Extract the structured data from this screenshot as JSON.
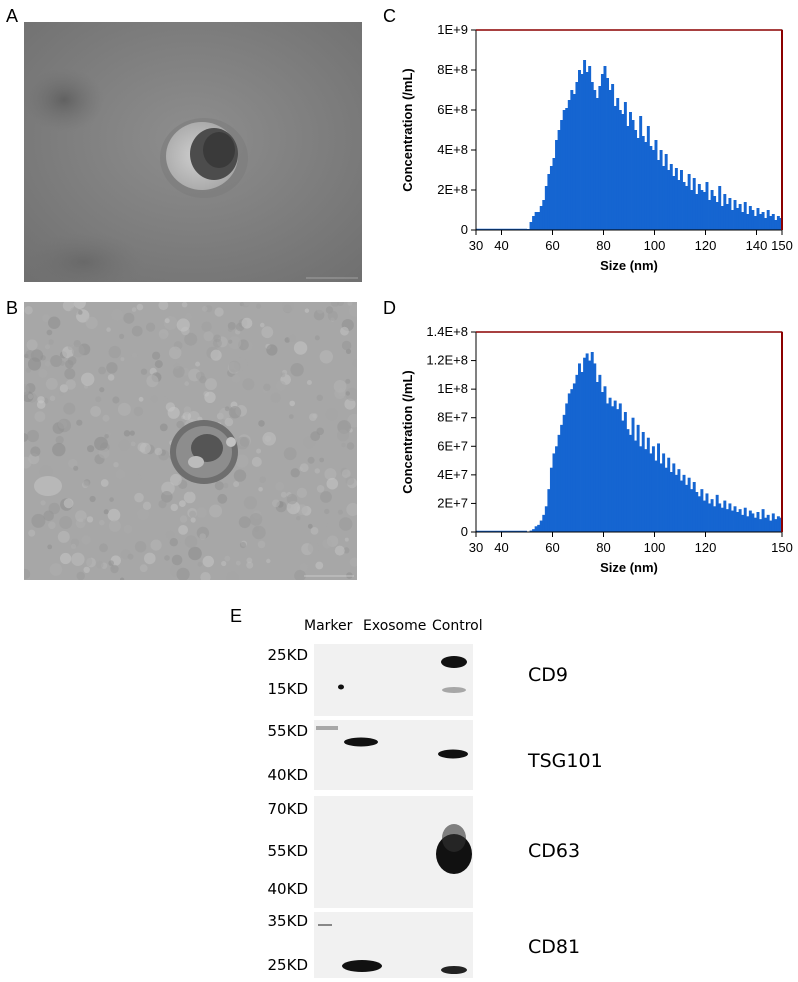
{
  "panels": {
    "A": {
      "label": "A",
      "scale_bar_text": "100nm"
    },
    "B": {
      "label": "B",
      "scale_bar_text": "100nm"
    },
    "C": {
      "label": "C"
    },
    "D": {
      "label": "D"
    },
    "E": {
      "label": "E"
    }
  },
  "chart_data": [
    {
      "id": "C",
      "type": "bar",
      "xlabel": "Size (nm)",
      "ylabel": "Concentration (/mL)",
      "xlim": [
        30,
        150
      ],
      "ylim": [
        0,
        1000000000
      ],
      "xticks": [
        {
          "v": 30,
          "label": "30"
        },
        {
          "v": 40,
          "label": "40"
        },
        {
          "v": 60,
          "label": "60"
        },
        {
          "v": 80,
          "label": "80"
        },
        {
          "v": 100,
          "label": "100"
        },
        {
          "v": 120,
          "label": "120"
        },
        {
          "v": 140,
          "label": "140"
        },
        {
          "v": 150,
          "label": "150"
        }
      ],
      "yticks": [
        {
          "v": 0,
          "label": "0"
        },
        {
          "v": 200000000,
          "label": "2E+8"
        },
        {
          "v": 400000000,
          "label": "4E+8"
        },
        {
          "v": 600000000,
          "label": "6E+8"
        },
        {
          "v": 800000000,
          "label": "8E+8"
        },
        {
          "v": 1000000000,
          "label": "1E+9"
        }
      ],
      "color": "#1565d1",
      "bin_start": 50,
      "bin_width": 1,
      "values": [
        0.005,
        0.04,
        0.07,
        0.09,
        0.09,
        0.12,
        0.15,
        0.22,
        0.28,
        0.32,
        0.36,
        0.45,
        0.5,
        0.55,
        0.6,
        0.61,
        0.65,
        0.7,
        0.68,
        0.74,
        0.8,
        0.78,
        0.85,
        0.79,
        0.82,
        0.74,
        0.7,
        0.66,
        0.72,
        0.78,
        0.82,
        0.76,
        0.7,
        0.73,
        0.62,
        0.66,
        0.6,
        0.58,
        0.64,
        0.52,
        0.59,
        0.55,
        0.5,
        0.46,
        0.57,
        0.47,
        0.44,
        0.52,
        0.42,
        0.4,
        0.45,
        0.35,
        0.4,
        0.32,
        0.38,
        0.3,
        0.33,
        0.27,
        0.31,
        0.25,
        0.3,
        0.24,
        0.22,
        0.28,
        0.2,
        0.26,
        0.18,
        0.23,
        0.2,
        0.19,
        0.24,
        0.15,
        0.2,
        0.17,
        0.14,
        0.22,
        0.12,
        0.18,
        0.13,
        0.16,
        0.1,
        0.15,
        0.11,
        0.13,
        0.09,
        0.14,
        0.08,
        0.12,
        0.1,
        0.07,
        0.11,
        0.08,
        0.09,
        0.06,
        0.1,
        0.07,
        0.08,
        0.05,
        0.07,
        0.06
      ]
    },
    {
      "id": "D",
      "type": "bar",
      "xlabel": "Size (nm)",
      "ylabel": "Concentration (/mL)",
      "xlim": [
        30,
        150
      ],
      "ylim": [
        0,
        140000000
      ],
      "xticks": [
        {
          "v": 30,
          "label": "30"
        },
        {
          "v": 40,
          "label": "40"
        },
        {
          "v": 60,
          "label": "60"
        },
        {
          "v": 80,
          "label": "80"
        },
        {
          "v": 100,
          "label": "100"
        },
        {
          "v": 120,
          "label": "120"
        },
        {
          "v": 150,
          "label": "150"
        }
      ],
      "yticks": [
        {
          "v": 0,
          "label": "0"
        },
        {
          "v": 20000000,
          "label": "2E+7"
        },
        {
          "v": 40000000,
          "label": "4E+7"
        },
        {
          "v": 60000000,
          "label": "6E+7"
        },
        {
          "v": 80000000,
          "label": "8E+7"
        },
        {
          "v": 100000000,
          "label": "1E+8"
        },
        {
          "v": 120000000,
          "label": "1.2E+8"
        },
        {
          "v": 140000000,
          "label": "1.4E+8"
        }
      ],
      "color": "#1565d1",
      "bin_start": 50,
      "bin_width": 1,
      "values": [
        0.003,
        0.01,
        0.02,
        0.04,
        0.05,
        0.08,
        0.12,
        0.18,
        0.3,
        0.45,
        0.55,
        0.6,
        0.68,
        0.75,
        0.82,
        0.9,
        0.97,
        1.0,
        1.04,
        1.1,
        1.18,
        1.12,
        1.22,
        1.25,
        1.2,
        1.26,
        1.18,
        1.05,
        1.1,
        0.98,
        1.02,
        0.9,
        0.94,
        0.88,
        0.92,
        0.86,
        0.9,
        0.78,
        0.84,
        0.72,
        0.68,
        0.8,
        0.64,
        0.75,
        0.6,
        0.7,
        0.58,
        0.66,
        0.55,
        0.6,
        0.5,
        0.62,
        0.48,
        0.55,
        0.45,
        0.52,
        0.42,
        0.48,
        0.4,
        0.44,
        0.36,
        0.4,
        0.33,
        0.38,
        0.3,
        0.35,
        0.28,
        0.25,
        0.3,
        0.22,
        0.27,
        0.2,
        0.23,
        0.18,
        0.26,
        0.2,
        0.17,
        0.22,
        0.16,
        0.2,
        0.15,
        0.18,
        0.14,
        0.16,
        0.12,
        0.17,
        0.11,
        0.15,
        0.13,
        0.1,
        0.14,
        0.09,
        0.16,
        0.1,
        0.12,
        0.08,
        0.13,
        0.09,
        0.11,
        0.1
      ],
      "value_scale": 100000000
    }
  ],
  "western_blot": {
    "lane_headers": [
      "Marker",
      "Exosome",
      "Control"
    ],
    "rows": [
      {
        "protein": "CD9",
        "mw_top": "25KD",
        "mw_bottom": "15KD"
      },
      {
        "protein": "TSG101",
        "mw_top": "55KD",
        "mw_bottom": "40KD"
      },
      {
        "protein": "CD63",
        "mw_top": "70KD",
        "mw_mid": "55KD",
        "mw_bottom": "40KD"
      },
      {
        "protein": "CD81",
        "mw_top": "35KD",
        "mw_bottom": "25KD"
      }
    ]
  }
}
